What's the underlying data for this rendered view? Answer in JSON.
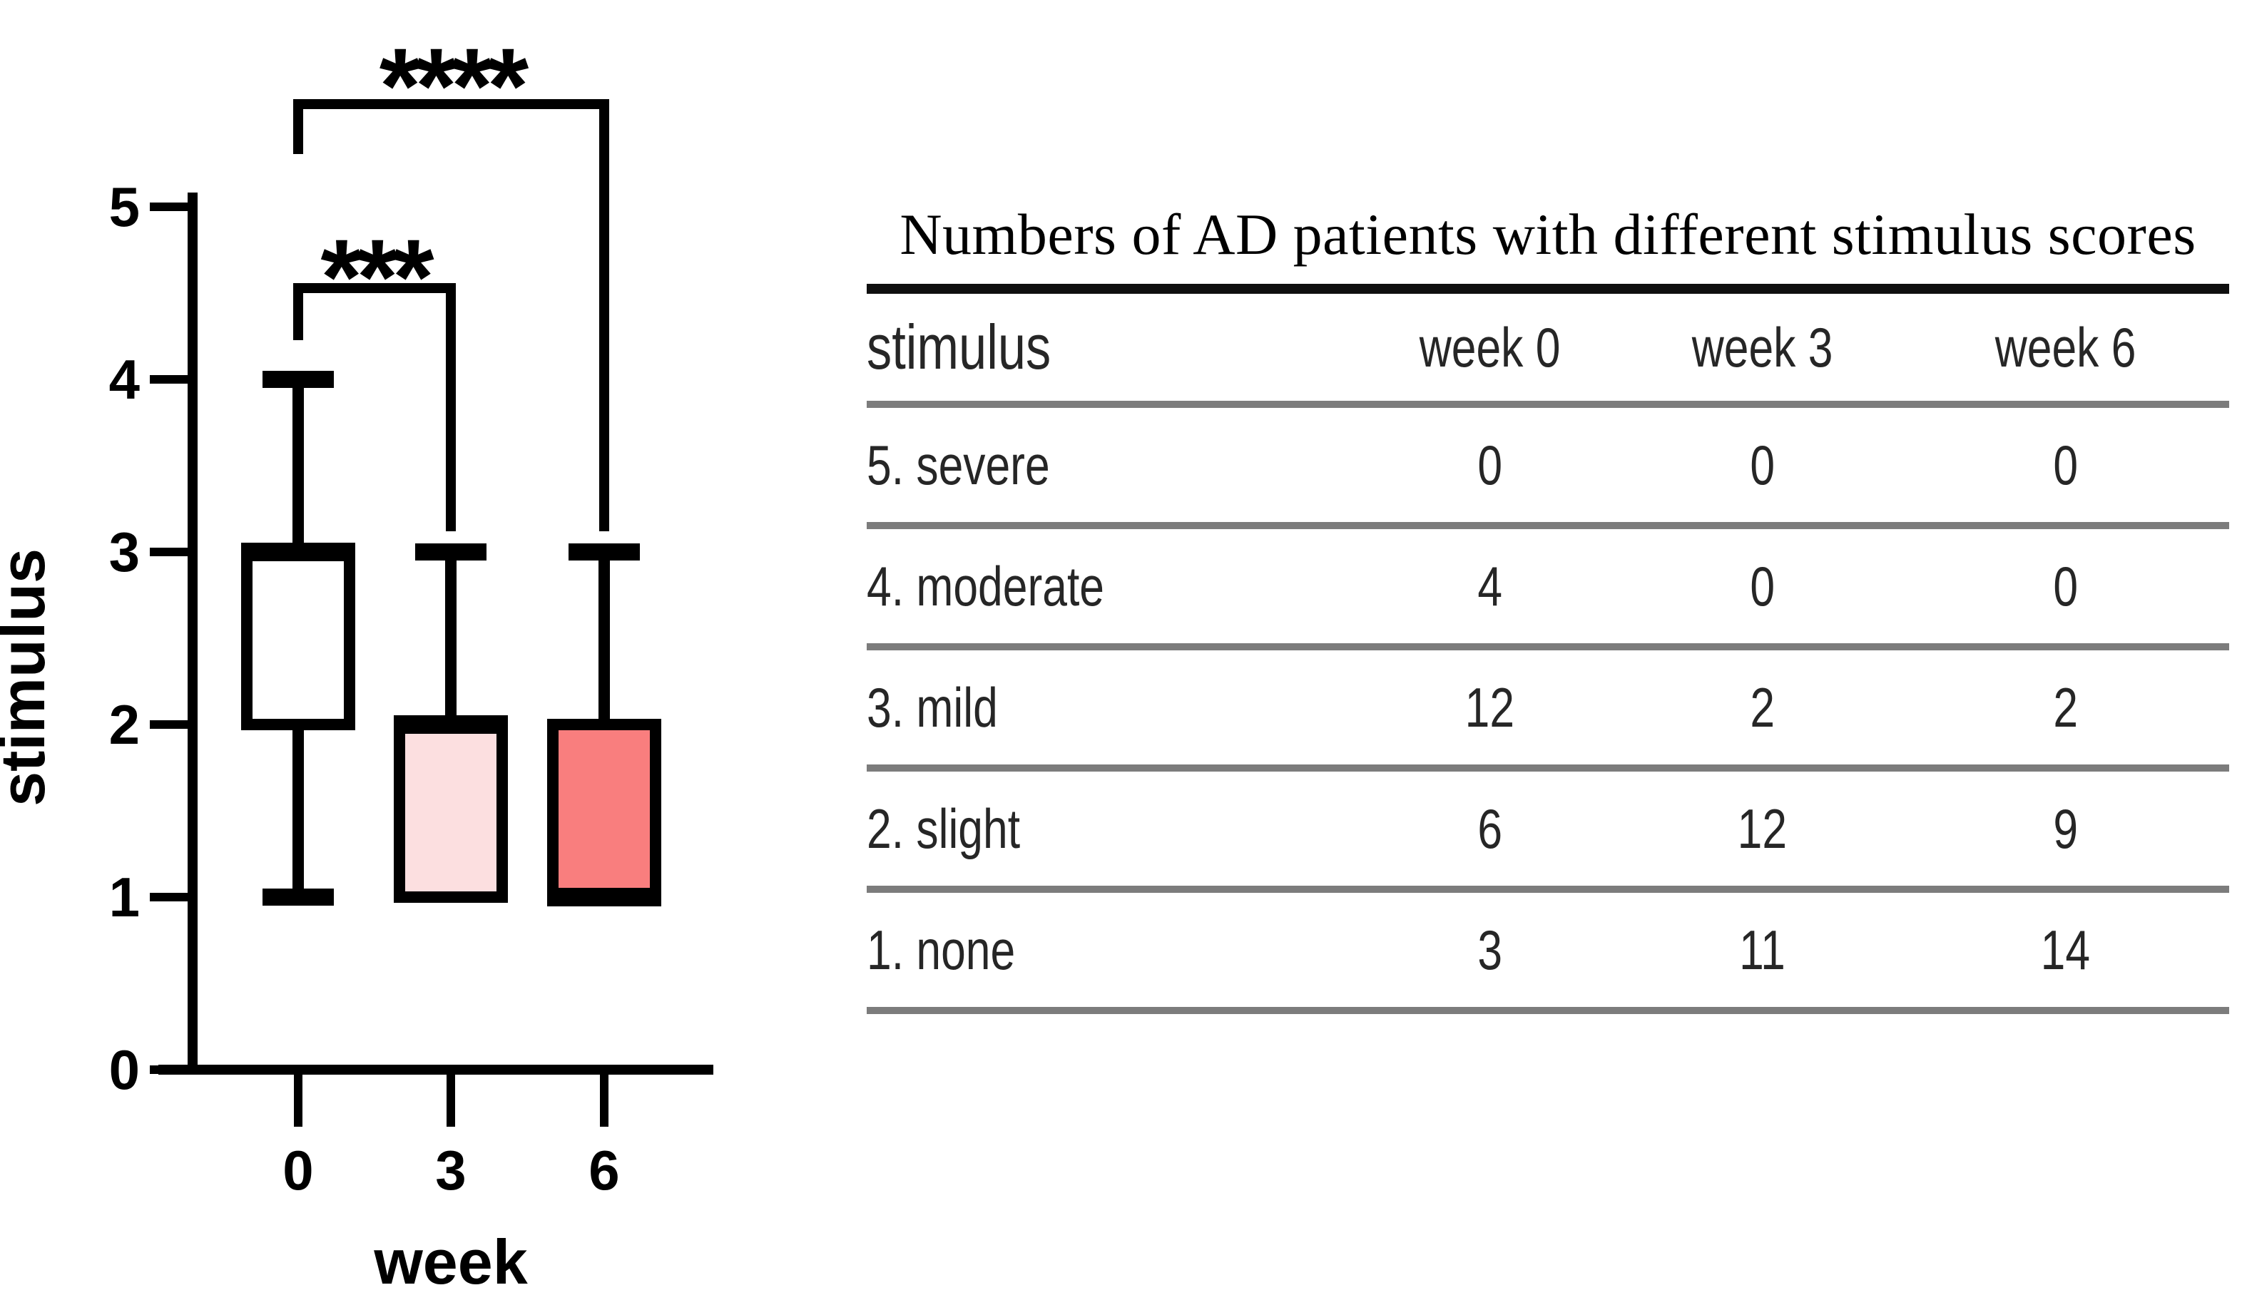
{
  "chart_data": {
    "type": "box",
    "title": "",
    "xlabel": "week",
    "ylabel": "stimulus",
    "ylim": [
      0,
      5
    ],
    "yticks": [
      "0",
      "1",
      "2",
      "3",
      "4",
      "5"
    ],
    "categories": [
      "0",
      "3",
      "6"
    ],
    "boxes": [
      {
        "category": "0",
        "min": 1,
        "q1": 2,
        "median": 3,
        "q3": 3,
        "max": 4,
        "fill": "#ffffff"
      },
      {
        "category": "3",
        "min": 1,
        "q1": 1,
        "median": 2,
        "q3": 2,
        "max": 3,
        "fill": "#fcdfe0"
      },
      {
        "category": "6",
        "min": 1,
        "q1": 1,
        "median": 1,
        "q3": 2,
        "max": 3,
        "fill": "#f97e7e"
      }
    ],
    "significance": [
      {
        "label": "***",
        "from": "0",
        "to": "3"
      },
      {
        "label": "****",
        "from": "0",
        "to": "6"
      }
    ],
    "line_color": "#000000",
    "grid": false,
    "legend": false
  },
  "table": {
    "title": "Numbers of AD patients with different stimulus scores",
    "columns": [
      "stimulus",
      "week 0",
      "week 3",
      "week 6"
    ],
    "rows": [
      {
        "label": "5. severe",
        "values": [
          "0",
          "0",
          "0"
        ]
      },
      {
        "label": "4. moderate",
        "values": [
          "4",
          "0",
          "0"
        ]
      },
      {
        "label": "3. mild",
        "values": [
          "12",
          "2",
          "2"
        ]
      },
      {
        "label": "2. slight",
        "values": [
          "6",
          "12",
          "9"
        ]
      },
      {
        "label": "1. none",
        "values": [
          "3",
          "11",
          "14"
        ]
      }
    ]
  }
}
